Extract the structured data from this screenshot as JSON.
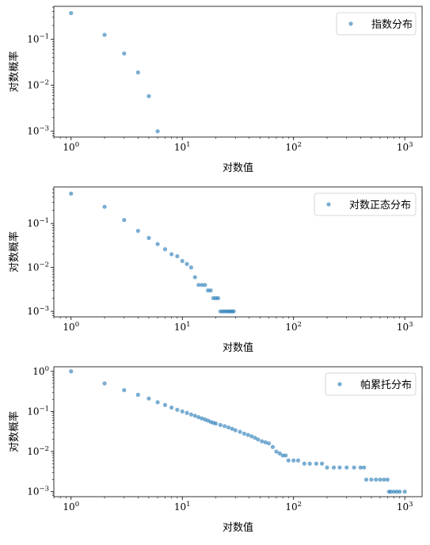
{
  "chart_data": [
    {
      "type": "scatter",
      "xscale": "log",
      "yscale": "log",
      "xlabel": "对数值",
      "ylabel": "对数概率",
      "xlim": [
        0.7,
        1430
      ],
      "ylim": [
        0.00075,
        0.52
      ],
      "xticks": [
        "10^0",
        "10^1",
        "10^2",
        "10^3"
      ],
      "yticks": [
        "10^-3",
        "10^-2",
        "10^-1"
      ],
      "legend": "top-right",
      "grid": false,
      "series": [
        {
          "name": "指数分布",
          "color": "#1f77b4",
          "x": [
            1,
            2,
            3,
            4,
            5,
            6
          ],
          "y": [
            0.37,
            0.125,
            0.049,
            0.019,
            0.0058,
            0.001
          ]
        }
      ]
    },
    {
      "type": "scatter",
      "xscale": "log",
      "yscale": "log",
      "xlabel": "对数值",
      "ylabel": "对数概率",
      "xlim": [
        0.7,
        1430
      ],
      "ylim": [
        0.00075,
        0.68
      ],
      "xticks": [
        "10^0",
        "10^1",
        "10^2",
        "10^3"
      ],
      "yticks": [
        "10^-3",
        "10^-2",
        "10^-1"
      ],
      "legend": "top-right",
      "grid": false,
      "series": [
        {
          "name": "对数正态分布",
          "color": "#1f77b4",
          "x": [
            1,
            2,
            3,
            4,
            5,
            6,
            7,
            8,
            9,
            10,
            11,
            12,
            13,
            14,
            15,
            16,
            17,
            18,
            19,
            20,
            21,
            22,
            23,
            24,
            25,
            26,
            27,
            28,
            29
          ],
          "y": [
            0.48,
            0.24,
            0.12,
            0.068,
            0.047,
            0.034,
            0.026,
            0.02,
            0.018,
            0.014,
            0.012,
            0.01,
            0.006,
            0.004,
            0.004,
            0.004,
            0.003,
            0.003,
            0.002,
            0.002,
            0.002,
            0.001,
            0.001,
            0.001,
            0.001,
            0.001,
            0.001,
            0.001,
            0.001
          ]
        }
      ]
    },
    {
      "type": "scatter",
      "xscale": "log",
      "yscale": "log",
      "xlabel": "对数值",
      "ylabel": "对数概率",
      "xlim": [
        0.7,
        1430
      ],
      "ylim": [
        0.00075,
        1.3
      ],
      "xticks": [
        "10^0",
        "10^1",
        "10^2",
        "10^3"
      ],
      "yticks": [
        "10^-3",
        "10^-2",
        "10^-1",
        "10^0"
      ],
      "legend": "top-right",
      "grid": false,
      "series": [
        {
          "name": "帕累托分布",
          "color": "#1f77b4",
          "x": [
            1,
            2,
            3,
            4,
            5,
            6,
            7,
            8,
            9,
            10,
            11,
            12,
            13,
            14,
            15,
            16,
            17,
            18,
            19,
            20,
            22,
            24,
            26,
            28,
            30,
            33,
            36,
            39,
            42,
            45,
            48,
            52,
            56,
            60,
            65,
            70,
            75,
            80,
            85,
            90,
            100,
            110,
            125,
            140,
            160,
            180,
            200,
            230,
            260,
            300,
            350,
            400,
            430,
            450,
            500,
            550,
            600,
            650,
            700,
            720,
            750,
            800,
            850,
            900,
            1000
          ],
          "y": [
            1.0,
            0.5,
            0.34,
            0.26,
            0.21,
            0.17,
            0.145,
            0.125,
            0.11,
            0.1,
            0.092,
            0.084,
            0.078,
            0.072,
            0.067,
            0.063,
            0.059,
            0.055,
            0.052,
            0.05,
            0.046,
            0.043,
            0.04,
            0.037,
            0.034,
            0.031,
            0.028,
            0.026,
            0.024,
            0.022,
            0.02,
            0.018,
            0.017,
            0.016,
            0.013,
            0.01,
            0.009,
            0.008,
            0.008,
            0.006,
            0.006,
            0.006,
            0.005,
            0.005,
            0.005,
            0.005,
            0.004,
            0.004,
            0.004,
            0.004,
            0.004,
            0.004,
            0.004,
            0.002,
            0.002,
            0.002,
            0.002,
            0.002,
            0.002,
            0.001,
            0.001,
            0.001,
            0.001,
            0.001,
            0.001
          ]
        }
      ]
    }
  ]
}
